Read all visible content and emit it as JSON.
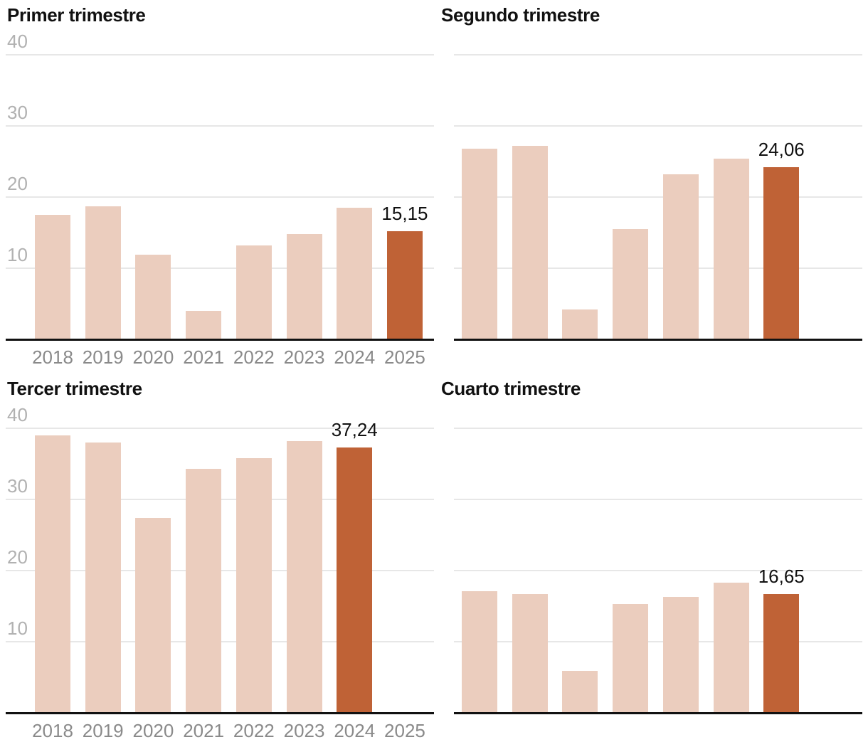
{
  "panel": {
    "layout": "2x2 small multiples",
    "background": "#ffffff"
  },
  "styles": {
    "bar_color": "#ebcdbe",
    "highlight_bar_color": "#bf6236",
    "gridline_color": "#e7e7e7",
    "axis_line_color": "#111111",
    "title_color": "#111111",
    "y_tick_color": "#b1b1b1",
    "x_tick_color": "#8a8a8a",
    "value_label_color": "#111111"
  },
  "chart_data": [
    {
      "type": "bar",
      "title": "Primer trimestre",
      "panel_position": "top-left",
      "categories": [
        "2018",
        "2019",
        "2020",
        "2021",
        "2022",
        "2023",
        "2024",
        "2025"
      ],
      "values": [
        17.4,
        18.6,
        11.8,
        3.9,
        13.1,
        14.7,
        18.4,
        15.15
      ],
      "highlight_index": 7,
      "highlight_label": "15,15",
      "y_ticks": [
        40,
        30,
        20,
        10
      ],
      "ylim": [
        0,
        40
      ],
      "grid": "horizontal",
      "show_x_labels": true,
      "show_y_labels": true,
      "num_slots": 8
    },
    {
      "type": "bar",
      "title": "Segundo trimestre",
      "panel_position": "top-right",
      "categories": [
        "2018",
        "2019",
        "2020",
        "2021",
        "2022",
        "2023",
        "2024"
      ],
      "values": [
        26.7,
        27.1,
        4.1,
        15.4,
        23.1,
        25.3,
        24.06
      ],
      "highlight_index": 6,
      "highlight_label": "24,06",
      "y_ticks": [
        40,
        30,
        20,
        10
      ],
      "ylim": [
        0,
        40
      ],
      "grid": "horizontal",
      "show_x_labels": false,
      "show_y_labels": false,
      "num_slots": 8
    },
    {
      "type": "bar",
      "title": "Tercer trimestre",
      "panel_position": "bottom-left",
      "categories": [
        "2018",
        "2019",
        "2020",
        "2021",
        "2022",
        "2023",
        "2024",
        "2025"
      ],
      "values": [
        38.9,
        37.9,
        27.3,
        34.2,
        35.7,
        38.1,
        37.24
      ],
      "highlight_index": 6,
      "highlight_label": "37,24",
      "y_ticks": [
        40,
        30,
        20,
        10
      ],
      "ylim": [
        0,
        40
      ],
      "grid": "horizontal",
      "show_x_labels": true,
      "show_y_labels": true,
      "num_slots": 8
    },
    {
      "type": "bar",
      "title": "Cuarto trimestre",
      "panel_position": "bottom-right",
      "categories": [
        "2018",
        "2019",
        "2020",
        "2021",
        "2022",
        "2023",
        "2024"
      ],
      "values": [
        17.0,
        16.6,
        5.8,
        15.2,
        16.2,
        18.2,
        16.65
      ],
      "highlight_index": 6,
      "highlight_label": "16,65",
      "y_ticks": [
        40,
        30,
        20,
        10
      ],
      "ylim": [
        0,
        40
      ],
      "grid": "horizontal",
      "show_x_labels": false,
      "show_y_labels": false,
      "num_slots": 8
    }
  ]
}
